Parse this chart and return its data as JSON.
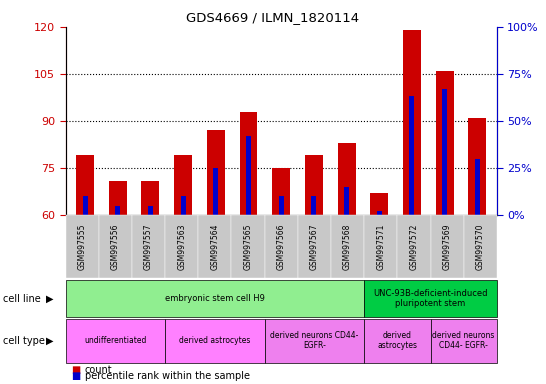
{
  "title": "GDS4669 / ILMN_1820114",
  "samples": [
    "GSM997555",
    "GSM997556",
    "GSM997557",
    "GSM997563",
    "GSM997564",
    "GSM997565",
    "GSM997566",
    "GSM997567",
    "GSM997568",
    "GSM997571",
    "GSM997572",
    "GSM997569",
    "GSM997570"
  ],
  "count_values": [
    79,
    71,
    71,
    79,
    87,
    93,
    75,
    79,
    83,
    67,
    119,
    106,
    91
  ],
  "percentile_values": [
    10,
    5,
    5,
    10,
    25,
    42,
    10,
    10,
    15,
    2,
    63,
    67,
    30
  ],
  "ylim_left": [
    60,
    120
  ],
  "ylim_right": [
    0,
    100
  ],
  "yticks_left": [
    60,
    75,
    90,
    105,
    120
  ],
  "yticks_right": [
    0,
    25,
    50,
    75,
    100
  ],
  "cell_line_groups": [
    {
      "label": "embryonic stem cell H9",
      "start": 0,
      "end": 9,
      "color": "#90EE90"
    },
    {
      "label": "UNC-93B-deficient-induced\npluripotent stem",
      "start": 9,
      "end": 13,
      "color": "#00CC44"
    }
  ],
  "cell_type_groups": [
    {
      "label": "undifferentiated",
      "start": 0,
      "end": 3,
      "color": "#FF80FF"
    },
    {
      "label": "derived astrocytes",
      "start": 3,
      "end": 6,
      "color": "#FF80FF"
    },
    {
      "label": "derived neurons CD44-\nEGFR-",
      "start": 6,
      "end": 9,
      "color": "#EE80EE"
    },
    {
      "label": "derived\nastrocytes",
      "start": 9,
      "end": 11,
      "color": "#EE80EE"
    },
    {
      "label": "derived neurons\nCD44- EGFR-",
      "start": 11,
      "end": 13,
      "color": "#EE80EE"
    }
  ],
  "bar_color": "#CC0000",
  "percentile_color": "#0000CC",
  "tick_color_left": "#CC0000",
  "tick_color_right": "#0000CC",
  "gridline_yticks": [
    75,
    90,
    105
  ],
  "legend_items": [
    {
      "color": "#CC0000",
      "label": "count"
    },
    {
      "color": "#0000CC",
      "label": "percentile rank within the sample"
    }
  ]
}
